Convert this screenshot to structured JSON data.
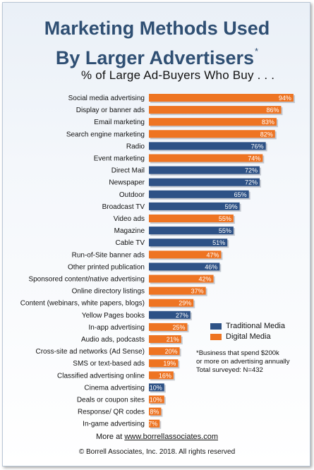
{
  "title_line1": "Marketing Methods Used",
  "title_line2": "By Larger Advertisers",
  "title_mark": "*",
  "subtitle": "% of Large Ad-Buyers Who Buy . . .",
  "legend": {
    "traditional": "Traditional Media",
    "digital": "Digital Media"
  },
  "colors": {
    "traditional": "#2e5286",
    "digital": "#ee7422"
  },
  "note": {
    "line1": "*Business that spend $200k",
    "line2": "or more on advertising annually",
    "line3": "Total surveyed:  N=432"
  },
  "footer": {
    "more_prefix": "More at ",
    "more_link": "www.borrellassociates.com",
    "copyright": "© Borrell Associates, Inc. 2018. All rights reserved"
  },
  "chart_data": {
    "type": "bar",
    "orientation": "horizontal",
    "title": "Marketing Methods Used By Larger Advertisers*",
    "subtitle": "% of Large Ad-Buyers Who Buy . . .",
    "categories": [
      "Social media advertising",
      "Display or banner ads",
      "Email marketing",
      "Search engine marketing",
      "Radio",
      "Event marketing",
      "Direct Mail",
      "Newspaper",
      "Outdoor",
      "Broadcast TV",
      "Video ads",
      "Magazine",
      "Cable TV",
      "Run-of-Site banner ads",
      "Other printed publication",
      "Sponsored content/native advertising",
      "Online directory listings",
      "Content (webinars, white papers, blogs)",
      "Yellow Pages books",
      "In-app advertising",
      "Audio ads, podcasts",
      "Cross-site ad networks (Ad Sense)",
      "SMS or text-based ads",
      "Classified advertising online",
      "Cinema advertising",
      "Deals or coupon sites",
      "Response/ QR codes",
      "In-game advertising"
    ],
    "values": [
      94,
      86,
      83,
      82,
      76,
      74,
      72,
      72,
      65,
      59,
      55,
      55,
      51,
      47,
      46,
      42,
      37,
      29,
      27,
      25,
      21,
      20,
      19,
      16,
      10,
      10,
      8,
      7
    ],
    "labels": [
      "94%",
      "86%",
      "83%",
      "82%",
      "76%",
      "74%",
      "72%",
      "72%",
      "65%",
      "59%",
      "55%",
      "55%",
      "51%",
      "47%",
      "46%",
      "42%",
      "37%",
      "29%",
      "27%",
      "25%",
      "21%",
      "20%",
      "19%",
      "16%",
      "10%",
      "10%",
      "8%",
      "7%"
    ],
    "media_type": [
      "Digital Media",
      "Digital Media",
      "Digital Media",
      "Digital Media",
      "Traditional Media",
      "Digital Media",
      "Traditional Media",
      "Traditional Media",
      "Traditional Media",
      "Traditional Media",
      "Digital Media",
      "Traditional Media",
      "Traditional Media",
      "Digital Media",
      "Traditional Media",
      "Digital Media",
      "Digital Media",
      "Digital Media",
      "Traditional Media",
      "Digital Media",
      "Digital Media",
      "Digital Media",
      "Digital Media",
      "Digital Media",
      "Traditional Media",
      "Digital Media",
      "Digital Media",
      "Digital Media"
    ],
    "series": [
      {
        "name": "Traditional Media",
        "color": "#2e5286"
      },
      {
        "name": "Digital Media",
        "color": "#ee7422"
      }
    ],
    "xlim": [
      0,
      100
    ],
    "grid": false,
    "legend_position": "right"
  }
}
